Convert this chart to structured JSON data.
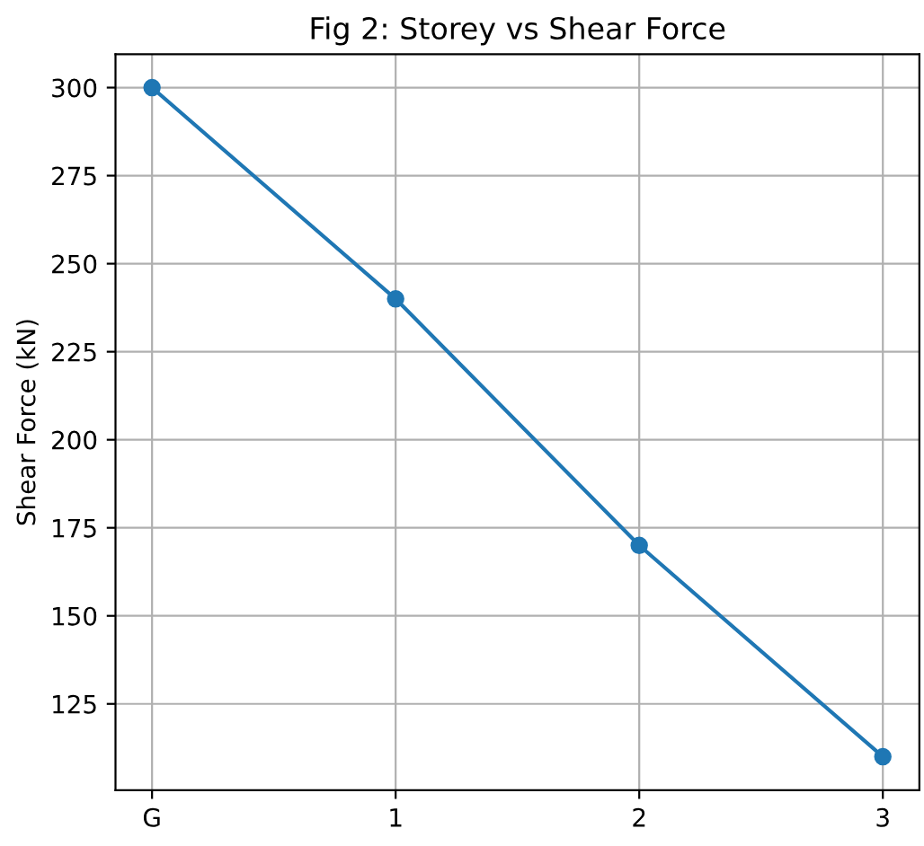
{
  "chart_data": {
    "type": "line",
    "title": "Fig 2: Storey vs Shear Force",
    "ylabel": "Shear Force (kN)",
    "categories": [
      "G",
      "1",
      "2",
      "3"
    ],
    "series": [
      {
        "color": "#1f77b4",
        "values": [
          300,
          240,
          170,
          110
        ]
      }
    ],
    "ylim": [
      100.5,
      309.5
    ],
    "yticks": [
      125,
      150,
      175,
      200,
      225,
      250,
      275,
      300
    ],
    "grid": true,
    "marker": "circle",
    "line_style": "solid"
  }
}
